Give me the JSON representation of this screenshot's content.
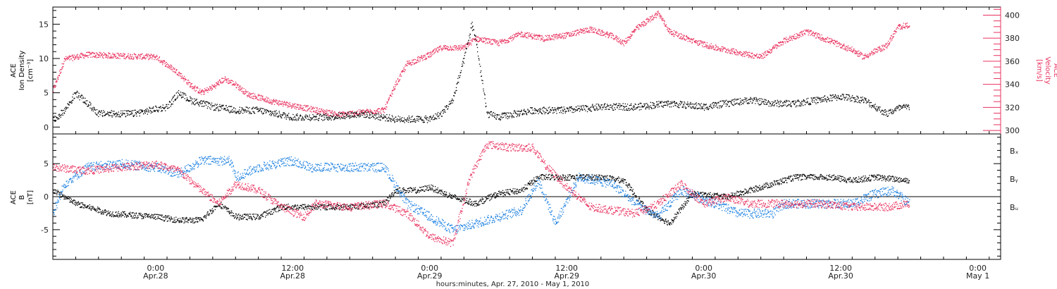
{
  "colors": {
    "black": "#000000",
    "pink": "#e8325f",
    "blue": "#1a7fe0",
    "axis": "#000000"
  },
  "chart_data": [
    {
      "type": "scatter",
      "panel": "top",
      "xlabel": "hours:minutes, Apr. 27, 2010 - May  1, 2010",
      "xlim": [
        "2010-04-27T15:00",
        "2010-05-01T02:00"
      ],
      "x_ticks": [
        {
          "at": "2010-04-28T00:00",
          "label": "0:00",
          "sublabel": "Apr.28"
        },
        {
          "at": "2010-04-28T12:00",
          "label": "12:00",
          "sublabel": "Apr.28"
        },
        {
          "at": "2010-04-29T00:00",
          "label": "0:00",
          "sublabel": "Apr.29"
        },
        {
          "at": "2010-04-29T12:00",
          "label": "12:00",
          "sublabel": "Apr.29"
        },
        {
          "at": "2010-04-30T00:00",
          "label": "0:00",
          "sublabel": "Apr.30"
        },
        {
          "at": "2010-04-30T12:00",
          "label": "12:00",
          "sublabel": "Apr.30"
        },
        {
          "at": "2010-05-01T00:00",
          "label": "0:00",
          "sublabel": "May 1"
        }
      ],
      "left_axis": {
        "label_lines": [
          "ACE",
          "Ion Density",
          "[cm⁻³]"
        ],
        "ylim": [
          -1,
          17.5
        ],
        "ticks": [
          "0",
          "5",
          "10",
          "15"
        ]
      },
      "right_axis": {
        "label_lines": [
          "ACE",
          "Velocity",
          "[km/s]"
        ],
        "ylim": [
          297,
          407
        ],
        "ticks": [
          "300",
          "320",
          "340",
          "360",
          "380",
          "400"
        ]
      },
      "series": [
        {
          "color": "pink",
          "axis": "right",
          "points": [
            [
              "2010-04-27T15:00",
              335
            ],
            [
              "2010-04-27T16:00",
              362
            ],
            [
              "2010-04-27T18:00",
              366
            ],
            [
              "2010-04-27T21:00",
              365
            ],
            [
              "2010-04-28T00:00",
              364
            ],
            [
              "2010-04-28T01:00",
              357
            ],
            [
              "2010-04-28T02:00",
              350
            ],
            [
              "2010-04-28T03:00",
              340
            ],
            [
              "2010-04-28T04:00",
              333
            ],
            [
              "2010-04-28T05:00",
              338
            ],
            [
              "2010-04-28T06:00",
              345
            ],
            [
              "2010-04-28T07:00",
              340
            ],
            [
              "2010-04-28T08:00",
              332
            ],
            [
              "2010-04-28T10:00",
              326
            ],
            [
              "2010-04-28T12:00",
              322
            ],
            [
              "2010-04-28T14:00",
              318
            ],
            [
              "2010-04-28T16:00",
              314
            ],
            [
              "2010-04-28T18:00",
              316
            ],
            [
              "2010-04-28T20:00",
              318
            ],
            [
              "2010-04-28T21:00",
              340
            ],
            [
              "2010-04-28T22:00",
              358
            ],
            [
              "2010-04-29T00:00",
              366
            ],
            [
              "2010-04-29T01:00",
              372
            ],
            [
              "2010-04-29T03:00",
              372
            ],
            [
              "2010-04-29T04:00",
              380
            ],
            [
              "2010-04-29T06:00",
              376
            ],
            [
              "2010-04-29T08:00",
              384
            ],
            [
              "2010-04-29T10:00",
              380
            ],
            [
              "2010-04-29T12:00",
              383
            ],
            [
              "2010-04-29T14:00",
              388
            ],
            [
              "2010-04-29T16:00",
              382
            ],
            [
              "2010-04-29T17:00",
              376
            ],
            [
              "2010-04-29T18:00",
              388
            ],
            [
              "2010-04-29T20:00",
              402
            ],
            [
              "2010-04-29T21:00",
              386
            ],
            [
              "2010-04-29T23:00",
              378
            ],
            [
              "2010-04-30T01:00",
              372
            ],
            [
              "2010-04-30T03:00",
              368
            ],
            [
              "2010-04-30T05:00",
              364
            ],
            [
              "2010-04-30T07:00",
              378
            ],
            [
              "2010-04-30T09:00",
              386
            ],
            [
              "2010-04-30T11:00",
              378
            ],
            [
              "2010-04-30T13:00",
              370
            ],
            [
              "2010-04-30T14:00",
              364
            ],
            [
              "2010-04-30T16:00",
              374
            ],
            [
              "2010-04-30T17:00",
              390
            ],
            [
              "2010-04-30T18:00",
              392
            ]
          ]
        },
        {
          "color": "black",
          "axis": "left",
          "points": [
            [
              "2010-04-27T15:00",
              1
            ],
            [
              "2010-04-27T16:00",
              2.5
            ],
            [
              "2010-04-27T17:00",
              5
            ],
            [
              "2010-04-27T19:00",
              2
            ],
            [
              "2010-04-27T22:00",
              2
            ],
            [
              "2010-04-28T01:00",
              3
            ],
            [
              "2010-04-28T02:00",
              5
            ],
            [
              "2010-04-28T03:00",
              4
            ],
            [
              "2010-04-28T05:00",
              3
            ],
            [
              "2010-04-28T07:00",
              2.5
            ],
            [
              "2010-04-28T09:00",
              2.5
            ],
            [
              "2010-04-28T12:00",
              1.5
            ],
            [
              "2010-04-28T15:00",
              1.5
            ],
            [
              "2010-04-28T18:00",
              2
            ],
            [
              "2010-04-28T21:00",
              1.2
            ],
            [
              "2010-04-29T00:00",
              1.2
            ],
            [
              "2010-04-29T01:00",
              2
            ],
            [
              "2010-04-29T02:00",
              4
            ],
            [
              "2010-04-29T03:00",
              10
            ],
            [
              "2010-04-29T03:40",
              15
            ],
            [
              "2010-04-29T04:00",
              13
            ],
            [
              "2010-04-29T05:00",
              2
            ],
            [
              "2010-04-29T06:00",
              1.5
            ],
            [
              "2010-04-29T09:00",
              2.5
            ],
            [
              "2010-04-29T12:00",
              2.5
            ],
            [
              "2010-04-29T15:00",
              3
            ],
            [
              "2010-04-29T18:00",
              3
            ],
            [
              "2010-04-29T21:00",
              3.5
            ],
            [
              "2010-04-30T00:00",
              3
            ],
            [
              "2010-04-30T02:00",
              3.5
            ],
            [
              "2010-04-30T04:00",
              4
            ],
            [
              "2010-04-30T06:00",
              3.5
            ],
            [
              "2010-04-30T08:00",
              3.5
            ],
            [
              "2010-04-30T10:00",
              4
            ],
            [
              "2010-04-30T12:00",
              4.5
            ],
            [
              "2010-04-30T14:00",
              4
            ],
            [
              "2010-04-30T16:00",
              2
            ],
            [
              "2010-04-30T17:00",
              2.8
            ],
            [
              "2010-04-30T18:00",
              3
            ]
          ]
        }
      ]
    },
    {
      "type": "scatter",
      "panel": "bottom",
      "left_axis": {
        "label_lines": [
          "ACE",
          "B",
          "[nT]"
        ],
        "ylim": [
          -9.5,
          9.5
        ],
        "ticks": [
          "-5",
          "0",
          "5"
        ]
      },
      "zero_line": true,
      "series": [
        {
          "name": "Bₓ",
          "color": "black",
          "points": [
            [
              "2010-04-27T15:00",
              1
            ],
            [
              "2010-04-27T17:00",
              -1
            ],
            [
              "2010-04-27T20:00",
              -2.5
            ],
            [
              "2010-04-28T00:00",
              -3
            ],
            [
              "2010-04-28T02:00",
              -3.5
            ],
            [
              "2010-04-28T04:00",
              -3.5
            ],
            [
              "2010-04-28T05:30",
              -1
            ],
            [
              "2010-04-28T07:00",
              -3
            ],
            [
              "2010-04-28T09:00",
              -3
            ],
            [
              "2010-04-28T11:00",
              -1.5
            ],
            [
              "2010-04-28T14:00",
              -1.5
            ],
            [
              "2010-04-28T17:00",
              -1.5
            ],
            [
              "2010-04-28T20:00",
              -1
            ],
            [
              "2010-04-28T21:00",
              1
            ],
            [
              "2010-04-28T23:00",
              1
            ],
            [
              "2010-04-29T00:00",
              1.5
            ],
            [
              "2010-04-29T02:00",
              0
            ],
            [
              "2010-04-29T04:00",
              -1
            ],
            [
              "2010-04-29T06:00",
              0.5
            ],
            [
              "2010-04-29T08:00",
              1
            ],
            [
              "2010-04-29T09:30",
              3
            ],
            [
              "2010-04-29T12:00",
              3
            ],
            [
              "2010-04-29T15:00",
              3
            ],
            [
              "2010-04-29T17:00",
              2.5
            ],
            [
              "2010-04-29T19:00",
              -2
            ],
            [
              "2010-04-29T21:00",
              -4
            ],
            [
              "2010-04-29T23:00",
              0.5
            ],
            [
              "2010-04-30T02:00",
              0
            ],
            [
              "2010-04-30T04:00",
              1
            ],
            [
              "2010-04-30T06:00",
              2
            ],
            [
              "2010-04-30T08:00",
              3
            ],
            [
              "2010-04-30T11:00",
              3
            ],
            [
              "2010-04-30T13:00",
              2.5
            ],
            [
              "2010-04-30T15:00",
              3
            ],
            [
              "2010-04-30T18:00",
              2.5
            ]
          ]
        },
        {
          "name": "Bᵧ",
          "color": "blue",
          "points": [
            [
              "2010-04-27T15:00",
              -2.5
            ],
            [
              "2010-04-27T16:00",
              2
            ],
            [
              "2010-04-27T18:00",
              4.5
            ],
            [
              "2010-04-27T21:00",
              5
            ],
            [
              "2010-04-28T00:00",
              4.5
            ],
            [
              "2010-04-28T02:00",
              3.5
            ],
            [
              "2010-04-28T04:00",
              5.5
            ],
            [
              "2010-04-28T06:30",
              5.5
            ],
            [
              "2010-04-28T07:00",
              3
            ],
            [
              "2010-04-28T09:00",
              4.5
            ],
            [
              "2010-04-28T12:00",
              5.5
            ],
            [
              "2010-04-28T13:30",
              4.5
            ],
            [
              "2010-04-28T17:00",
              4.5
            ],
            [
              "2010-04-28T20:00",
              4.5
            ],
            [
              "2010-04-28T22:00",
              -1
            ],
            [
              "2010-04-29T00:00",
              -3
            ],
            [
              "2010-04-29T02:00",
              -5
            ],
            [
              "2010-04-29T04:00",
              -4
            ],
            [
              "2010-04-29T06:00",
              -3
            ],
            [
              "2010-04-29T08:00",
              -2
            ],
            [
              "2010-04-29T09:30",
              2.5
            ],
            [
              "2010-04-29T11:00",
              -4
            ],
            [
              "2010-04-29T13:00",
              3
            ],
            [
              "2010-04-29T16:00",
              2
            ],
            [
              "2010-04-29T18:00",
              -1
            ],
            [
              "2010-04-29T20:00",
              -3
            ],
            [
              "2010-04-29T22:00",
              1
            ],
            [
              "2010-04-30T01:00",
              -1
            ],
            [
              "2010-04-30T03:00",
              -2.5
            ],
            [
              "2010-04-30T06:00",
              -2.5
            ],
            [
              "2010-04-30T07:00",
              -1
            ],
            [
              "2010-04-30T10:00",
              -1
            ],
            [
              "2010-04-30T13:00",
              -1
            ],
            [
              "2010-04-30T15:00",
              0.5
            ],
            [
              "2010-04-30T16:30",
              1
            ],
            [
              "2010-04-30T18:00",
              -1
            ]
          ]
        },
        {
          "name": "Bᵤ",
          "color": "pink",
          "points": [
            [
              "2010-04-27T15:00",
              4.5
            ],
            [
              "2010-04-27T18:00",
              4
            ],
            [
              "2010-04-27T21:00",
              4.5
            ],
            [
              "2010-04-28T00:00",
              5
            ],
            [
              "2010-04-28T02:00",
              4
            ],
            [
              "2010-04-28T04:00",
              1
            ],
            [
              "2010-04-28T05:30",
              -1
            ],
            [
              "2010-04-28T07:00",
              2
            ],
            [
              "2010-04-28T09:00",
              1
            ],
            [
              "2010-04-28T11:00",
              -1.5
            ],
            [
              "2010-04-28T13:00",
              -3
            ],
            [
              "2010-04-28T14:00",
              -1
            ],
            [
              "2010-04-28T17:00",
              -1.5
            ],
            [
              "2010-04-28T20:00",
              -1
            ],
            [
              "2010-04-28T22:00",
              -2.5
            ],
            [
              "2010-04-29T00:00",
              -6
            ],
            [
              "2010-04-29T02:00",
              -7
            ],
            [
              "2010-04-29T03:30",
              3
            ],
            [
              "2010-04-29T05:00",
              8
            ],
            [
              "2010-04-29T07:00",
              7.5
            ],
            [
              "2010-04-29T09:00",
              7.5
            ],
            [
              "2010-04-29T10:00",
              5
            ],
            [
              "2010-04-29T12:00",
              1.5
            ],
            [
              "2010-04-29T14:00",
              -1.5
            ],
            [
              "2010-04-29T16:00",
              -2
            ],
            [
              "2010-04-29T18:00",
              -2.5
            ],
            [
              "2010-04-29T20:00",
              -1
            ],
            [
              "2010-04-29T22:00",
              2
            ],
            [
              "2010-04-30T00:00",
              -1
            ],
            [
              "2010-04-30T02:00",
              0
            ],
            [
              "2010-04-30T04:00",
              -1
            ],
            [
              "2010-04-30T07:00",
              -1
            ],
            [
              "2010-04-30T10:00",
              -1
            ],
            [
              "2010-04-30T13:00",
              -1.5
            ],
            [
              "2010-04-30T16:00",
              -1.5
            ],
            [
              "2010-04-30T18:00",
              -1
            ]
          ]
        }
      ]
    }
  ]
}
